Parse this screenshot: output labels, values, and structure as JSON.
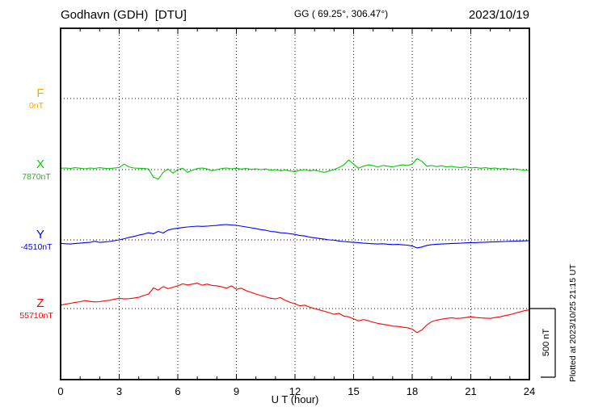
{
  "header": {
    "station_title": "Godhavn (GDH)  [DTU]",
    "geo_coords": "GG ( 69.25°, 306.47°)",
    "date": "2023/10/19"
  },
  "footer": {
    "plotted_at": "Plotted at 2023/10/25 21:15 UT"
  },
  "scalebar": {
    "label": "500 nT",
    "span_nT": 500
  },
  "x_axis": {
    "label": "U T (hour)",
    "ticks": [
      0,
      3,
      6,
      9,
      12,
      15,
      18,
      21,
      24
    ],
    "minor_tick_every_hours": 1,
    "range_hours": [
      0,
      24
    ]
  },
  "chart_data": {
    "type": "line",
    "title": "Godhavn (GDH) [DTU] magnetogram 2023/10/19",
    "xlabel": "U T (hour)",
    "x_start_hour": 0,
    "x_step_hours": 0.25,
    "x_end_hour": 24,
    "xticks": [
      0,
      3,
      6,
      9,
      12,
      15,
      18,
      21,
      24
    ],
    "grid": {
      "vertical_dotted_hours": [
        3,
        6,
        9,
        12,
        15,
        18,
        21
      ],
      "horizontal_dotted_at_baselines": true
    },
    "scale_bar": {
      "nT": 500,
      "label": "500 nT"
    },
    "series": [
      {
        "label": "F",
        "baseline_label": "0nT",
        "baseline_nT": 0,
        "color": "#ffa500",
        "values": []
      },
      {
        "label": "X",
        "baseline_label": "7870nT",
        "baseline_nT": 7870,
        "color": "#00cc00",
        "values": [
          7880,
          7882,
          7878,
          7884,
          7880,
          7876,
          7882,
          7879,
          7884,
          7880,
          7877,
          7882,
          7885,
          7910,
          7890,
          7882,
          7880,
          7878,
          7875,
          7815,
          7800,
          7850,
          7875,
          7845,
          7870,
          7880,
          7850,
          7865,
          7878,
          7882,
          7875,
          7862,
          7870,
          7878,
          7882,
          7876,
          7880,
          7874,
          7878,
          7872,
          7876,
          7870,
          7875,
          7865,
          7870,
          7862,
          7867,
          7860,
          7855,
          7865,
          7870,
          7862,
          7866,
          7858,
          7850,
          7860,
          7870,
          7885,
          7905,
          7940,
          7910,
          7880,
          7895,
          7905,
          7898,
          7890,
          7900,
          7895,
          7890,
          7898,
          7905,
          7900,
          7910,
          7950,
          7930,
          7895,
          7900,
          7892,
          7898,
          7890,
          7894,
          7888,
          7885,
          7890,
          7882,
          7886,
          7880,
          7884,
          7878,
          7882,
          7875,
          7878,
          7872,
          7876,
          7870,
          7866,
          7864
        ]
      },
      {
        "label": "Y",
        "baseline_label": "-4510nT",
        "baseline_nT": -4510,
        "color": "#0000ff",
        "values": [
          -4535,
          -4538,
          -4540,
          -4536,
          -4534,
          -4530,
          -4528,
          -4520,
          -4528,
          -4525,
          -4522,
          -4516,
          -4510,
          -4502,
          -4492,
          -4485,
          -4475,
          -4468,
          -4458,
          -4465,
          -4448,
          -4460,
          -4438,
          -4430,
          -4425,
          -4420,
          -4416,
          -4413,
          -4410,
          -4412,
          -4410,
          -4407,
          -4405,
          -4400,
          -4398,
          -4402,
          -4404,
          -4410,
          -4416,
          -4422,
          -4428,
          -4435,
          -4440,
          -4448,
          -4452,
          -4458,
          -4460,
          -4465,
          -4470,
          -4478,
          -4482,
          -4490,
          -4495,
          -4500,
          -4505,
          -4510,
          -4512,
          -4518,
          -4522,
          -4525,
          -4528,
          -4530,
          -4534,
          -4536,
          -4538,
          -4540,
          -4538,
          -4542,
          -4544,
          -4543,
          -4546,
          -4548,
          -4555,
          -4568,
          -4562,
          -4550,
          -4545,
          -4542,
          -4540,
          -4538,
          -4536,
          -4535,
          -4534,
          -4532,
          -4530,
          -4530,
          -4528,
          -4527,
          -4525,
          -4524,
          -4523,
          -4522,
          -4520,
          -4519,
          -4518,
          -4517,
          -4516
        ]
      },
      {
        "label": "Z",
        "baseline_label": "55710nT",
        "baseline_nT": 55710,
        "color": "#ff0000",
        "values": [
          55735,
          55742,
          55748,
          55755,
          55760,
          55768,
          55762,
          55758,
          55760,
          55766,
          55770,
          55778,
          55785,
          55780,
          55782,
          55786,
          55792,
          55805,
          55815,
          55860,
          55845,
          55870,
          55855,
          55865,
          55875,
          55890,
          55882,
          55888,
          55895,
          55880,
          55888,
          55878,
          55875,
          55868,
          55858,
          55875,
          55850,
          55858,
          55840,
          55828,
          55815,
          55805,
          55795,
          55785,
          55780,
          55790,
          55770,
          55755,
          55745,
          55730,
          55735,
          55720,
          55710,
          55700,
          55690,
          55680,
          55668,
          55675,
          55655,
          55650,
          55635,
          55620,
          55630,
          55622,
          55610,
          55602,
          55595,
          55590,
          55582,
          55580,
          55575,
          55570,
          55560,
          55535,
          55555,
          55590,
          55615,
          55625,
          55632,
          55638,
          55642,
          55638,
          55640,
          55645,
          55650,
          55645,
          55642,
          55640,
          55638,
          55645,
          55650,
          55658,
          55665,
          55675,
          55685,
          55695,
          55700
        ]
      }
    ]
  }
}
